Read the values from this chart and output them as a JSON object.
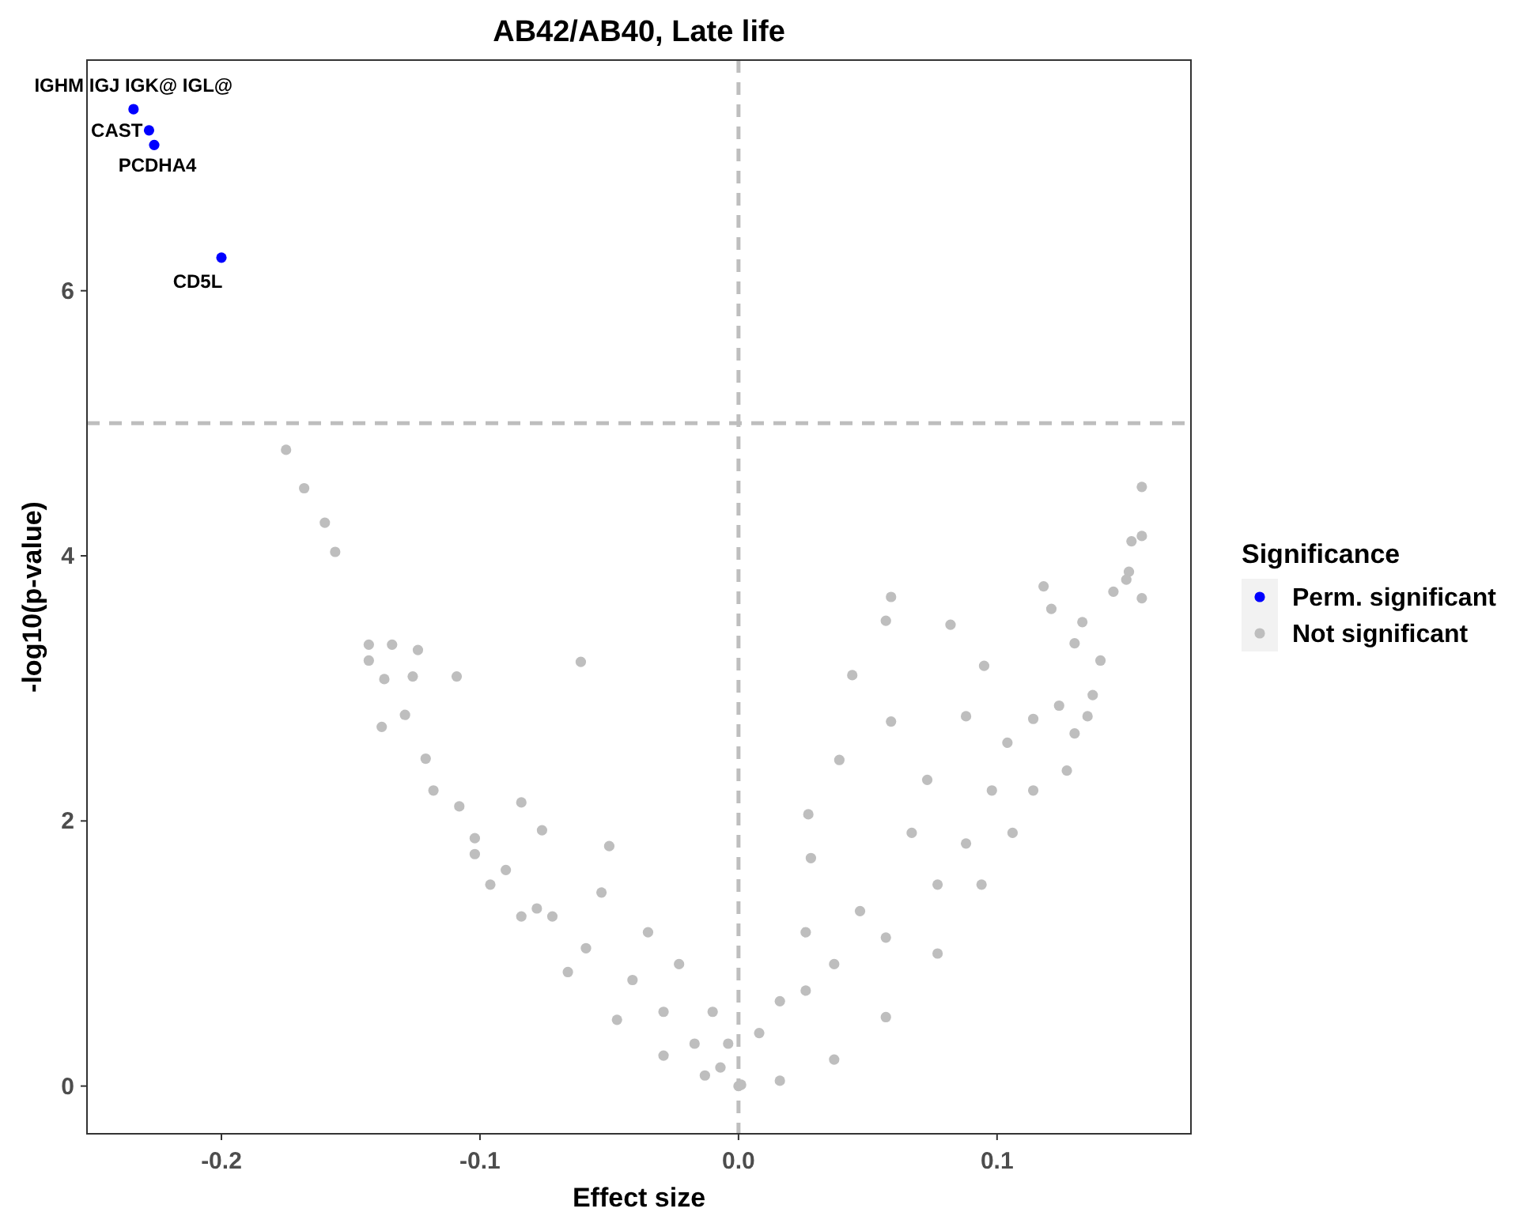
{
  "chart_data": {
    "type": "scatter",
    "title": "AB42/AB40, Late life",
    "xlabel": "Effect size",
    "ylabel": "-log10(p-value)",
    "legend_title": "Significance",
    "legend": "right",
    "grid": false,
    "marker": "circle",
    "xlim": [
      -0.252,
      0.175
    ],
    "xticks": [
      -0.2,
      -0.1,
      {
        "value": 0,
        "label": "0.0"
      },
      0.1
    ],
    "ylim": [
      -0.36,
      7.74
    ],
    "yticks": [
      0,
      2,
      4,
      6
    ],
    "ref_lines": [
      {
        "axis": "x",
        "value": 0,
        "color": "#bebebe",
        "line_style": "dashed"
      },
      {
        "axis": "y",
        "value": 5,
        "color": "#bebebe",
        "line_style": "dashed"
      }
    ],
    "annotations": [
      {
        "text": "IGHM IGJ IGK@ IGL@",
        "x": -0.234,
        "y": 7.37
      },
      {
        "text": "CAST",
        "x": -0.228,
        "y": 7.21
      },
      {
        "text": "PCDHA4",
        "x": -0.226,
        "y": 7.1
      },
      {
        "text": "CD5L",
        "x": -0.2,
        "y": 6.25
      }
    ],
    "series": [
      {
        "name": "Perm. significant",
        "color": "#0000ff",
        "x": [
          -0.234,
          -0.228,
          -0.226,
          -0.2
        ],
        "values": [
          7.37,
          7.21,
          7.1,
          6.25
        ]
      },
      {
        "name": "Not significant",
        "color": "#bebebe",
        "x": [
          -0.175,
          -0.168,
          -0.16,
          -0.156,
          -0.143,
          -0.143,
          -0.134,
          -0.124,
          -0.137,
          -0.126,
          -0.109,
          -0.061,
          -0.129,
          -0.138,
          -0.121,
          -0.118,
          -0.108,
          -0.102,
          -0.084,
          -0.076,
          -0.05,
          -0.096,
          -0.078,
          -0.053,
          -0.035,
          -0.023,
          -0.01,
          -0.004,
          -0.102,
          -0.084,
          -0.066,
          -0.047,
          -0.029,
          -0.013,
          -0.09,
          -0.072,
          -0.059,
          -0.041,
          -0.029,
          -0.017,
          -0.007,
          0,
          0.156,
          0.156,
          0.152,
          0.151,
          0.15,
          0.145,
          0.156,
          0.118,
          0.121,
          0.059,
          0.057,
          0.082,
          0.044,
          0.095,
          0.133,
          0.13,
          0.14,
          0.137,
          0.135,
          0.127,
          0.13,
          0.114,
          0.088,
          0.059,
          0.039,
          0.027,
          0.028,
          0.026,
          0.016,
          0.008,
          0.001,
          0.016,
          0.037,
          0.057,
          0.077,
          0.094,
          0.106,
          0.114,
          0.124,
          0.057,
          0.077,
          0.088,
          0.037,
          0.047,
          0.067,
          0.098,
          0.073,
          0.104,
          0.026
        ],
        "values": [
          4.8,
          4.51,
          4.25,
          4.03,
          3.33,
          3.21,
          3.33,
          3.29,
          3.07,
          3.09,
          3.09,
          3.2,
          2.8,
          2.71,
          2.47,
          2.23,
          2.11,
          1.87,
          2.14,
          1.93,
          1.81,
          1.52,
          1.34,
          1.46,
          1.16,
          0.92,
          0.56,
          0.32,
          1.75,
          1.28,
          0.86,
          0.5,
          0.23,
          0.08,
          1.63,
          1.28,
          1.04,
          0.8,
          0.56,
          0.32,
          0.14,
          0,
          4.52,
          4.15,
          4.11,
          3.88,
          3.82,
          3.73,
          3.68,
          3.77,
          3.6,
          3.69,
          3.51,
          3.48,
          3.1,
          3.17,
          3.5,
          3.34,
          3.21,
          2.95,
          2.79,
          2.38,
          2.66,
          2.77,
          2.79,
          2.75,
          2.46,
          2.05,
          1.72,
          1.16,
          0.64,
          0.4,
          0.01,
          0.04,
          0.2,
          0.52,
          1,
          1.52,
          1.91,
          2.23,
          2.87,
          1.12,
          1.52,
          1.83,
          0.92,
          1.32,
          1.91,
          2.23,
          2.31,
          2.59,
          0.72
        ]
      }
    ]
  }
}
